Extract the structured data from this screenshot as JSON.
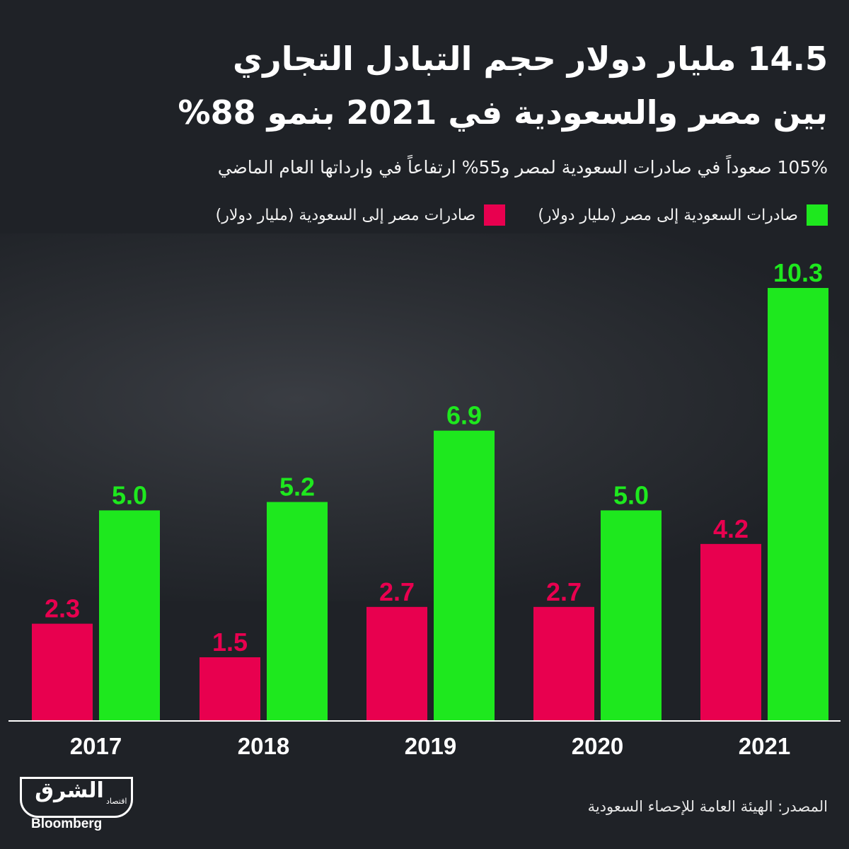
{
  "header": {
    "title_line1": "14.5 مليار دولار حجم التبادل التجاري",
    "title_line2": "بين مصر والسعودية في 2021 بنمو 88%",
    "subtitle": "105% صعوداً في صادرات السعودية لمصر و55% ارتفاعاً في وارداتها العام الماضي"
  },
  "legend": {
    "items": [
      {
        "label": "صادرات السعودية إلى مصر (مليار دولار)",
        "color": "#1ee81e"
      },
      {
        "label": "صادرات مصر إلى السعودية (مليار دولار)",
        "color": "#e8004f"
      }
    ]
  },
  "chart_data": {
    "type": "bar",
    "categories": [
      "2017",
      "2018",
      "2019",
      "2020",
      "2021"
    ],
    "series": [
      {
        "name": "صادرات مصر إلى السعودية (مليار دولار)",
        "color": "#e8004f",
        "values": [
          2.3,
          1.5,
          2.7,
          2.7,
          4.2
        ]
      },
      {
        "name": "صادرات السعودية إلى مصر (مليار دولار)",
        "color": "#1ee81e",
        "values": [
          5.0,
          5.2,
          6.9,
          5.0,
          10.3
        ]
      }
    ],
    "value_labels": {
      "series0": [
        "2.3",
        "1.5",
        "2.7",
        "2.7",
        "4.2"
      ],
      "series1": [
        "5.0",
        "5.2",
        "6.9",
        "5.0",
        "10.3"
      ]
    },
    "ylim": [
      0,
      10.3
    ],
    "grid": false,
    "legend_position": "top"
  },
  "footer": {
    "source": "المصدر: الهيئة العامة للإحصاء السعودية",
    "logo_main": "الشرق",
    "logo_sub": "اقتصاد",
    "logo_partner": "Bloomberg"
  },
  "colors": {
    "background": "#1f2227",
    "egypt_exports": "#e8004f",
    "saudi_exports": "#1ee81e",
    "axis": "#ffffff"
  }
}
